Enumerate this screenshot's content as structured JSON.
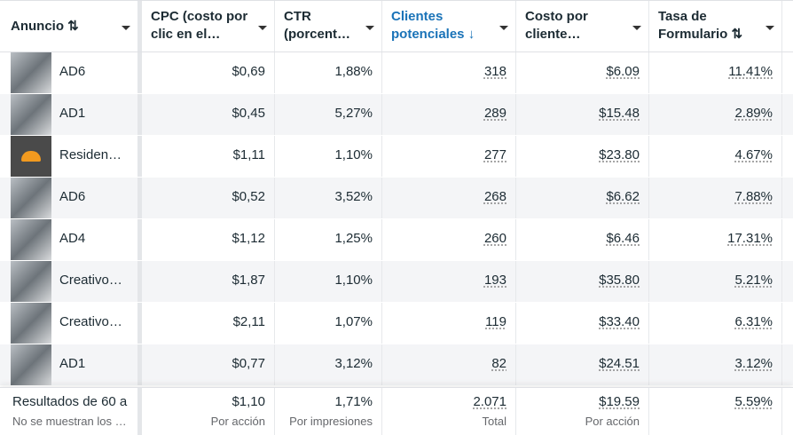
{
  "columns": [
    {
      "label": "Anuncio ⇅",
      "sort": "both"
    },
    {
      "label": "CPC (costo por clic en el…"
    },
    {
      "label": "CTR (porcent…"
    },
    {
      "label": "Clientes potenciales ↓",
      "active": true,
      "color": "#1a73b8"
    },
    {
      "label": "Costo por cliente…"
    },
    {
      "label": "Tasa de Formulario ⇅"
    }
  ],
  "rows": [
    {
      "ad": "AD6",
      "cpc": "$0,69",
      "ctr": "1,88%",
      "leads": "318",
      "cost": "$6.09",
      "rate": "11.41%"
    },
    {
      "ad": "AD1",
      "cpc": "$0,45",
      "ctr": "5,27%",
      "leads": "289",
      "cost": "$15.48",
      "rate": "2.89%"
    },
    {
      "ad": "Residen…",
      "cpc": "$1,11",
      "ctr": "1,10%",
      "leads": "277",
      "cost": "$23.80",
      "rate": "4.67%",
      "logo": true
    },
    {
      "ad": "AD6",
      "cpc": "$0,52",
      "ctr": "3,52%",
      "leads": "268",
      "cost": "$6.62",
      "rate": "7.88%"
    },
    {
      "ad": "AD4",
      "cpc": "$1,12",
      "ctr": "1,25%",
      "leads": "260",
      "cost": "$6.46",
      "rate": "17.31%"
    },
    {
      "ad": "Creativo…",
      "cpc": "$1,87",
      "ctr": "1,10%",
      "leads": "193",
      "cost": "$35.80",
      "rate": "5.21%"
    },
    {
      "ad": "Creativo…",
      "cpc": "$2,11",
      "ctr": "1,07%",
      "leads": "119",
      "cost": "$33.40",
      "rate": "6.31%"
    },
    {
      "ad": "AD1",
      "cpc": "$0,77",
      "ctr": "3,12%",
      "leads": "82",
      "cost": "$24.51",
      "rate": "3.12%"
    }
  ],
  "footer": {
    "title": "Resultados de 60 a",
    "subtitle": "No se muestran los e…",
    "cpc": "$1,10",
    "cpc_sub": "Por acción",
    "ctr": "1,71%",
    "ctr_sub": "Por impresiones",
    "leads": "2.071",
    "leads_sub": "Total",
    "cost": "$19.59",
    "cost_sub": "Por acción",
    "rate": "5.59%"
  }
}
